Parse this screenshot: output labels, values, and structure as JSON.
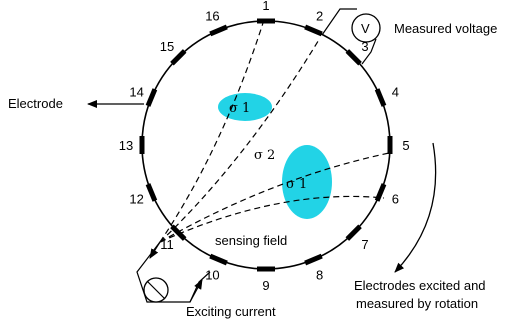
{
  "electrodes": [
    "1",
    "2",
    "3",
    "4",
    "5",
    "6",
    "7",
    "8",
    "9",
    "10",
    "11",
    "12",
    "13",
    "14",
    "15",
    "16"
  ],
  "labels": {
    "electrode": "Electrode",
    "measured_voltage": "Measured voltage",
    "voltmeter": "V",
    "exciting_current": "Exciting current",
    "sensing_field": "sensing field",
    "rotation_line1": "Electrodes excited and",
    "rotation_line2": "measured by rotation"
  },
  "regions": {
    "upper_inclusion": "σ 1",
    "background": "σ 2",
    "lower_inclusion": "σ 1"
  },
  "colors": {
    "inclusion": "#22d3e6",
    "line": "#000000"
  }
}
